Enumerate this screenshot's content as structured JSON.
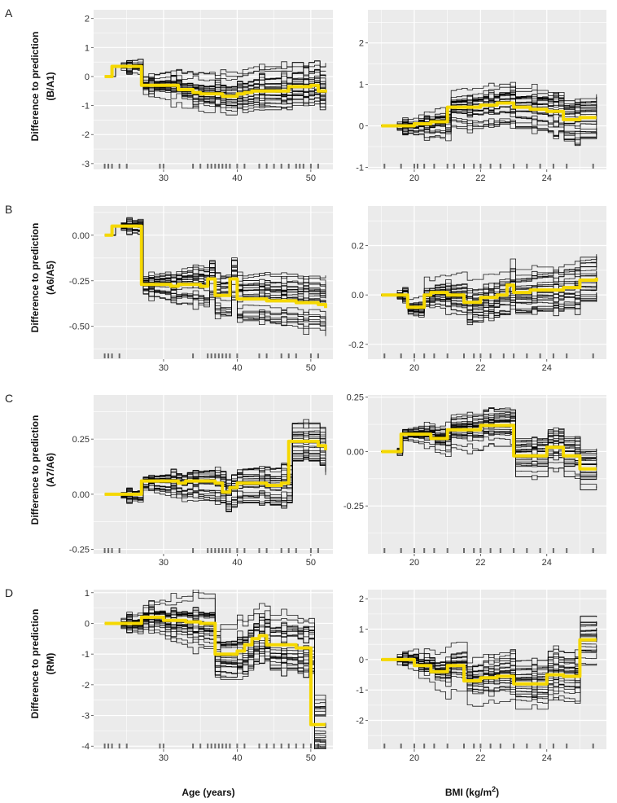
{
  "figure": {
    "x_labels": {
      "age": "Age (years)",
      "bmi_main": "BMI (kg/m",
      "bmi_sup": "2",
      "bmi_close": ")"
    },
    "ylabel_line1": "Difference to prediction"
  },
  "colors": {
    "panel_bg": "#ebebeb",
    "grid": "#ffffff",
    "ice": "#000000",
    "pdp": "#f5d800",
    "rug": "#000000"
  },
  "chart_data": [
    {
      "type": "line",
      "row": "A",
      "col": "age",
      "ylabel": "(B/A1)",
      "xlim": [
        20.5,
        53
      ],
      "ylim": [
        -3.2,
        2.3
      ],
      "xticks": [
        30,
        40,
        50
      ],
      "yticks": [
        -3,
        -2,
        -1,
        0,
        1,
        2
      ],
      "ytick_labels": [
        "-3",
        "-2",
        "-1",
        "0",
        "1",
        "2"
      ],
      "pdp": {
        "x": [
          22,
          23,
          26,
          27,
          32,
          34,
          35,
          37,
          38,
          40,
          41,
          42,
          46,
          47,
          48,
          50,
          51,
          52
        ],
        "y": [
          0.0,
          0.35,
          0.35,
          -0.3,
          -0.45,
          -0.55,
          -0.6,
          -0.6,
          -0.68,
          -0.6,
          -0.55,
          -0.5,
          -0.5,
          -0.35,
          -0.35,
          -0.3,
          -0.5,
          -0.55
        ]
      },
      "ice": {
        "count": 28,
        "seed": 11,
        "spread": 0.85,
        "amp": 0.22
      },
      "rug": [
        22,
        22.5,
        23,
        24,
        25,
        29.5,
        30,
        34,
        35,
        36,
        36.5,
        37,
        37.5,
        38,
        38.5,
        39,
        40,
        41,
        43,
        44,
        45,
        46,
        47,
        48,
        48.5,
        49,
        50,
        51
      ]
    },
    {
      "type": "line",
      "row": "A",
      "col": "bmi",
      "ylabel": "",
      "xlim": [
        18.6,
        25.8
      ],
      "ylim": [
        -1.05,
        2.8
      ],
      "xticks": [
        20,
        22,
        24
      ],
      "yticks": [
        -1,
        0,
        1,
        2
      ],
      "ytick_labels": [
        "-1",
        "0",
        "1",
        "2"
      ],
      "pdp": {
        "x": [
          19,
          19.5,
          20,
          20.5,
          21,
          21.5,
          22,
          22.5,
          23,
          23.5,
          24,
          24.5,
          25,
          25.5
        ],
        "y": [
          0.0,
          0.0,
          0.05,
          0.1,
          0.45,
          0.45,
          0.5,
          0.55,
          0.45,
          0.4,
          0.35,
          0.15,
          0.2,
          0.2
        ]
      },
      "ice": {
        "count": 28,
        "seed": 23,
        "spread": 0.55,
        "amp": 0.15
      },
      "rug": [
        19.1,
        19.6,
        20,
        20.1,
        20.3,
        20.6,
        21,
        21.2,
        21.5,
        21.8,
        22,
        22.3,
        22.6,
        23,
        23.4,
        23.8,
        24.2,
        24.6,
        25.4
      ]
    },
    {
      "type": "line",
      "row": "B",
      "col": "age",
      "ylabel": "(A6/A5)",
      "xlim": [
        20.5,
        53
      ],
      "ylim": [
        -0.68,
        0.16
      ],
      "xticks": [
        30,
        40,
        50
      ],
      "yticks": [
        -0.5,
        -0.25,
        0.0
      ],
      "ytick_labels": [
        "-0.50",
        "-0.25",
        "0.00"
      ],
      "pdp": {
        "x": [
          22,
          23,
          25,
          26,
          27,
          31,
          32,
          35,
          36,
          37,
          38,
          39,
          40,
          43,
          44,
          47,
          48,
          50,
          51,
          52
        ],
        "y": [
          0.0,
          0.05,
          0.05,
          0.05,
          -0.27,
          -0.28,
          -0.27,
          -0.28,
          -0.24,
          -0.33,
          -0.33,
          -0.24,
          -0.35,
          -0.35,
          -0.36,
          -0.36,
          -0.37,
          -0.37,
          -0.38,
          -0.4
        ]
      },
      "ice": {
        "count": 26,
        "seed": 37,
        "spread": 0.15,
        "amp": 0.035
      },
      "rug": [
        22,
        22.5,
        23,
        24,
        34,
        36,
        36.5,
        37,
        37.5,
        38,
        38.5,
        39,
        40,
        43,
        44,
        46,
        47,
        48,
        50,
        51
      ]
    },
    {
      "type": "line",
      "row": "B",
      "col": "bmi",
      "ylabel": "",
      "xlim": [
        18.6,
        25.8
      ],
      "ylim": [
        -0.26,
        0.36
      ],
      "xticks": [
        20,
        22,
        24
      ],
      "yticks": [
        -0.2,
        0.0,
        0.2
      ],
      "ytick_labels": [
        "-0.2",
        "0.0",
        "0.2"
      ],
      "pdp": {
        "x": [
          19,
          19.5,
          19.8,
          20,
          20.3,
          20.5,
          21,
          21.5,
          22,
          22.5,
          22.8,
          23,
          23.5,
          24,
          24.5,
          25,
          25.5
        ],
        "y": [
          0.0,
          0.0,
          -0.05,
          -0.05,
          0.0,
          0.01,
          0.0,
          -0.03,
          -0.01,
          0.0,
          0.04,
          0.01,
          0.02,
          0.02,
          0.03,
          0.06,
          0.07
        ]
      },
      "ice": {
        "count": 26,
        "seed": 53,
        "spread": 0.11,
        "amp": 0.025
      },
      "rug": [
        19.1,
        19.6,
        20,
        20.3,
        20.6,
        21,
        21.5,
        21.8,
        22,
        22.3,
        22.7,
        23,
        23.4,
        23.8,
        24.2,
        24.6,
        25.4
      ]
    },
    {
      "type": "line",
      "row": "C",
      "col": "age",
      "ylabel": "(A7/A6)",
      "xlim": [
        20.5,
        53
      ],
      "ylim": [
        -0.27,
        0.45
      ],
      "xticks": [
        30,
        40,
        50
      ],
      "yticks": [
        -0.25,
        0.0,
        0.25
      ],
      "ytick_labels": [
        "-0.25",
        "0.00",
        "0.25"
      ],
      "pdp": {
        "x": [
          22,
          23,
          25,
          26,
          27,
          30,
          32,
          33,
          34,
          37,
          38,
          39,
          40,
          42,
          44,
          46,
          47,
          48,
          50,
          51,
          52
        ],
        "y": [
          0.0,
          0.0,
          0.0,
          0.0,
          0.06,
          0.06,
          0.05,
          0.06,
          0.06,
          0.05,
          0.01,
          0.03,
          0.05,
          0.05,
          0.04,
          0.05,
          0.24,
          0.24,
          0.24,
          0.22,
          0.2
        ]
      },
      "ice": {
        "count": 26,
        "seed": 71,
        "spread": 0.09,
        "amp": 0.025
      },
      "rug": [
        22,
        22.5,
        23,
        24,
        34,
        36,
        36.5,
        37,
        37.5,
        38,
        38.5,
        39,
        40,
        41,
        43,
        44,
        46,
        47,
        48,
        50,
        51
      ]
    },
    {
      "type": "line",
      "row": "C",
      "col": "bmi",
      "ylabel": "",
      "xlim": [
        18.6,
        25.8
      ],
      "ylim": [
        -0.47,
        0.26
      ],
      "xticks": [
        20,
        22,
        24
      ],
      "yticks": [
        -0.25,
        0.0,
        0.25
      ],
      "ytick_labels": [
        "-0.25",
        "0.00",
        "0.25"
      ],
      "pdp": {
        "x": [
          19,
          19.4,
          19.6,
          19.8,
          20,
          20.5,
          21,
          21.5,
          22,
          22.5,
          23,
          23.5,
          24,
          24.5,
          25,
          25.5
        ],
        "y": [
          0.0,
          0.0,
          0.08,
          0.08,
          0.08,
          0.06,
          0.1,
          0.1,
          0.12,
          0.12,
          -0.02,
          -0.02,
          0.02,
          -0.02,
          -0.08,
          -0.08
        ]
      },
      "ice": {
        "count": 26,
        "seed": 89,
        "spread": 0.1,
        "amp": 0.02
      },
      "rug": [
        19.1,
        19.6,
        20,
        20.3,
        20.6,
        21,
        21.5,
        21.8,
        22,
        22.3,
        22.6,
        23,
        23.4,
        23.8,
        24.2,
        24.6,
        25.4
      ]
    },
    {
      "type": "line",
      "row": "D",
      "col": "age",
      "ylabel": "(RM)",
      "xlim": [
        20.5,
        53
      ],
      "ylim": [
        -4.1,
        1.1
      ],
      "xticks": [
        30,
        40,
        50
      ],
      "yticks": [
        -4,
        -3,
        -2,
        -1,
        0,
        1
      ],
      "ytick_labels": [
        "-4",
        "-3",
        "-2",
        "-1",
        "0",
        "1"
      ],
      "pdp": {
        "x": [
          22,
          25,
          26,
          27,
          30,
          33,
          35,
          36,
          37,
          38,
          40,
          41,
          42,
          43,
          44,
          46,
          48,
          49,
          50,
          51,
          52
        ],
        "y": [
          0.0,
          0.0,
          0.0,
          0.2,
          0.1,
          0.05,
          0.0,
          0.0,
          -1.0,
          -1.0,
          -0.9,
          -0.7,
          -0.5,
          -0.4,
          -0.7,
          -0.7,
          -0.8,
          -0.8,
          -3.3,
          -3.3,
          -3.3
        ]
      },
      "ice": {
        "count": 28,
        "seed": 97,
        "spread": 1.0,
        "amp": 0.25
      },
      "rug": [
        22,
        22.5,
        23,
        24,
        25,
        29.5,
        30,
        34,
        35,
        36,
        36.5,
        37,
        37.5,
        38,
        38.5,
        39,
        40,
        41,
        43,
        44,
        45,
        46,
        47,
        48,
        49,
        50,
        51
      ]
    },
    {
      "type": "line",
      "row": "D",
      "col": "bmi",
      "ylabel": "",
      "xlim": [
        18.6,
        25.8
      ],
      "ylim": [
        -2.95,
        2.3
      ],
      "xticks": [
        20,
        22,
        24
      ],
      "yticks": [
        -2,
        -1,
        0,
        1,
        2
      ],
      "ytick_labels": [
        "-2",
        "-1",
        "0",
        "1",
        "2"
      ],
      "pdp": {
        "x": [
          19,
          19.5,
          20,
          20.5,
          21,
          21.5,
          22,
          22.5,
          23,
          23.5,
          24,
          24.5,
          25,
          25.5
        ],
        "y": [
          0.0,
          0.0,
          -0.2,
          -0.4,
          -0.2,
          -0.7,
          -0.6,
          -0.55,
          -0.8,
          -0.8,
          -0.5,
          -0.55,
          0.65,
          0.65
        ]
      },
      "ice": {
        "count": 28,
        "seed": 131,
        "spread": 0.9,
        "amp": 0.2
      },
      "rug": [
        19.1,
        19.6,
        20,
        20.3,
        20.6,
        21,
        21.5,
        21.8,
        22,
        22.3,
        22.6,
        23,
        23.4,
        23.8,
        24.2,
        24.6,
        25.4
      ]
    }
  ]
}
